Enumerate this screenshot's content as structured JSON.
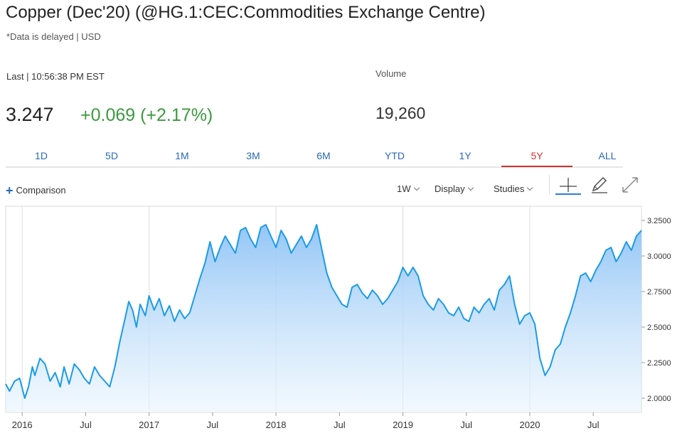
{
  "header": {
    "title": "Copper (Dec'20) (@HG.1:CEC:Commodities Exchange Centre)",
    "delayed_note": "*Data is delayed | USD",
    "last_label": "Last | 10:56:38 PM EST",
    "volume_label": "Volume",
    "price": "3.247",
    "change": "+0.069 (+2.17%)",
    "volume": "19,260"
  },
  "colors": {
    "accent": "#2a6ab5",
    "active_tab": "#d1322d",
    "positive": "#3b9a3e",
    "line": "#1a9be8"
  },
  "tabs": [
    {
      "label": "1D"
    },
    {
      "label": "5D"
    },
    {
      "label": "1M"
    },
    {
      "label": "3M"
    },
    {
      "label": "6M"
    },
    {
      "label": "YTD"
    },
    {
      "label": "1Y"
    },
    {
      "label": "5Y",
      "active": true
    },
    {
      "label": "ALL"
    }
  ],
  "toolbar": {
    "comparison": "Comparison",
    "interval": "1W",
    "display": "Display",
    "studies": "Studies",
    "icons": [
      "crosshair-icon",
      "pencil-icon",
      "expand-icon"
    ]
  },
  "chart_data": {
    "type": "area",
    "title": "",
    "xlabel": "",
    "ylabel": "",
    "ylim": [
      1.9,
      3.35
    ],
    "yticks": [
      "3.2500",
      "3.0000",
      "2.7500",
      "2.5000",
      "2.2500",
      "2.0000"
    ],
    "xticks": [
      "2016",
      "Jul",
      "2017",
      "Jul",
      "2018",
      "Jul",
      "2019",
      "Jul",
      "2020",
      "Jul"
    ],
    "grid": "vertical-at-years",
    "series": [
      {
        "x": [
          2015.87,
          2015.9,
          2015.94,
          2015.98,
          2016.02,
          2016.05,
          2016.08,
          2016.1,
          2016.14,
          2016.18,
          2016.22,
          2016.26,
          2016.3,
          2016.33,
          2016.37,
          2016.41,
          2016.45,
          2016.49,
          2016.53,
          2016.57,
          2016.61,
          2016.65,
          2016.69,
          2016.73,
          2016.77,
          2016.8,
          2016.84,
          2016.87,
          2016.9,
          2016.93,
          2016.97,
          2017.0,
          2017.04,
          2017.08,
          2017.12,
          2017.16,
          2017.2,
          2017.24,
          2017.28,
          2017.32,
          2017.36,
          2017.4,
          2017.44,
          2017.48,
          2017.52,
          2017.56,
          2017.6,
          2017.64,
          2017.68,
          2017.72,
          2017.76,
          2017.8,
          2017.84,
          2017.88,
          2017.92,
          2017.96,
          2018.0,
          2018.04,
          2018.08,
          2018.12,
          2018.16,
          2018.2,
          2018.24,
          2018.28,
          2018.32,
          2018.36,
          2018.4,
          2018.44,
          2018.48,
          2018.52,
          2018.56,
          2018.6,
          2018.64,
          2018.68,
          2018.72,
          2018.76,
          2018.8,
          2018.84,
          2018.88,
          2018.92,
          2018.96,
          2019.0,
          2019.04,
          2019.08,
          2019.12,
          2019.16,
          2019.2,
          2019.24,
          2019.28,
          2019.32,
          2019.36,
          2019.4,
          2019.44,
          2019.48,
          2019.52,
          2019.56,
          2019.6,
          2019.64,
          2019.68,
          2019.72,
          2019.76,
          2019.8,
          2019.84,
          2019.88,
          2019.92,
          2019.96,
          2020.0,
          2020.04,
          2020.08,
          2020.12,
          2020.16,
          2020.2,
          2020.24,
          2020.28,
          2020.32,
          2020.36,
          2020.4,
          2020.44,
          2020.48,
          2020.52,
          2020.56,
          2020.6,
          2020.64,
          2020.68,
          2020.72,
          2020.76,
          2020.8,
          2020.84,
          2020.88
        ],
        "y": [
          2.1,
          2.05,
          2.12,
          2.14,
          2.0,
          2.08,
          2.22,
          2.16,
          2.28,
          2.24,
          2.12,
          2.18,
          2.08,
          2.22,
          2.1,
          2.24,
          2.2,
          2.14,
          2.1,
          2.22,
          2.16,
          2.12,
          2.08,
          2.22,
          2.4,
          2.52,
          2.68,
          2.62,
          2.5,
          2.66,
          2.58,
          2.72,
          2.62,
          2.7,
          2.58,
          2.65,
          2.54,
          2.62,
          2.56,
          2.6,
          2.72,
          2.84,
          2.95,
          3.1,
          2.96,
          3.06,
          3.14,
          3.08,
          3.02,
          3.18,
          3.2,
          3.12,
          3.06,
          3.2,
          3.22,
          3.14,
          3.06,
          3.18,
          3.12,
          3.02,
          3.08,
          3.14,
          3.06,
          3.12,
          3.22,
          3.05,
          2.88,
          2.78,
          2.72,
          2.66,
          2.64,
          2.78,
          2.8,
          2.74,
          2.7,
          2.76,
          2.72,
          2.66,
          2.7,
          2.76,
          2.82,
          2.92,
          2.86,
          2.92,
          2.86,
          2.72,
          2.66,
          2.62,
          2.7,
          2.66,
          2.6,
          2.58,
          2.64,
          2.56,
          2.54,
          2.64,
          2.6,
          2.66,
          2.7,
          2.62,
          2.76,
          2.8,
          2.86,
          2.66,
          2.52,
          2.58,
          2.6,
          2.52,
          2.28,
          2.16,
          2.22,
          2.34,
          2.38,
          2.5,
          2.6,
          2.72,
          2.86,
          2.88,
          2.82,
          2.9,
          2.96,
          3.04,
          3.06,
          2.96,
          3.02,
          3.1,
          3.04,
          3.14,
          3.18
        ]
      }
    ]
  }
}
